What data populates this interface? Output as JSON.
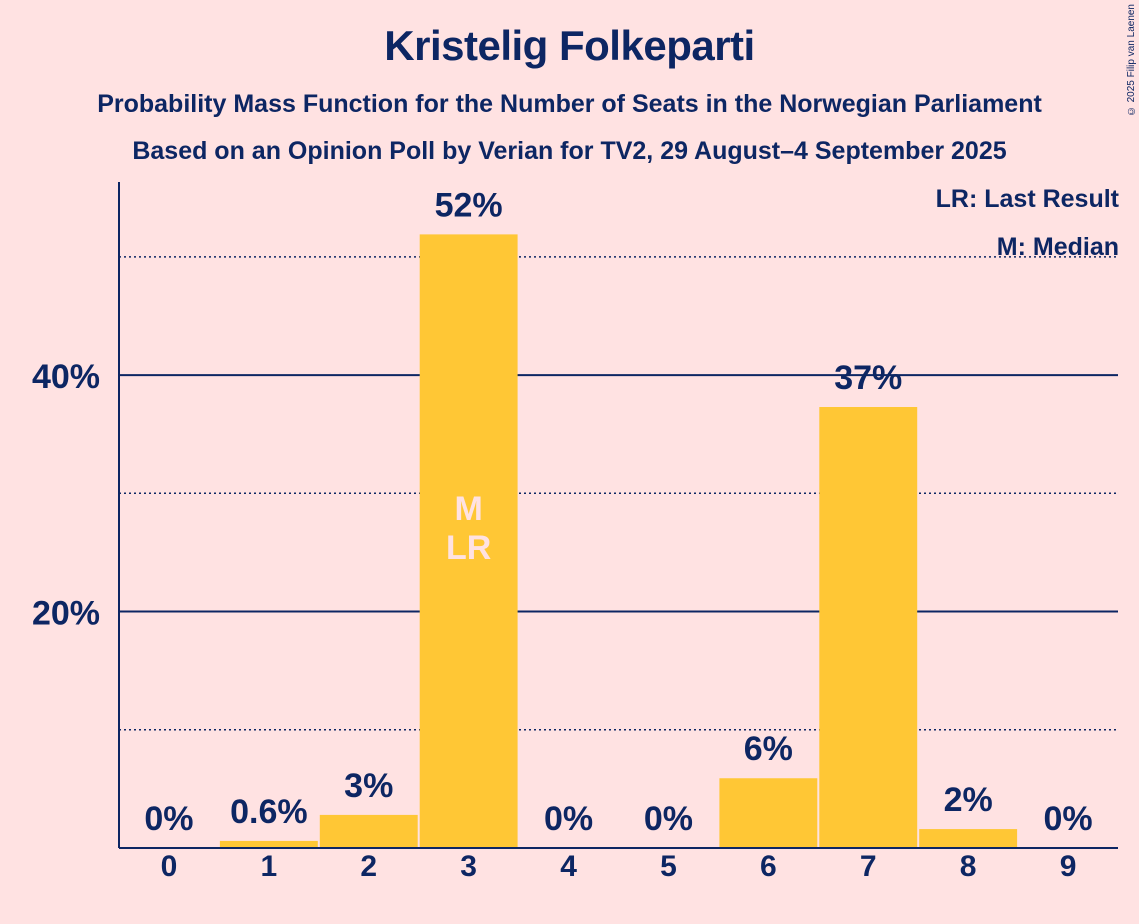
{
  "title": "Kristelig Folkeparti",
  "subtitle1": "Probability Mass Function for the Number of Seats in the Norwegian Parliament",
  "subtitle2": "Based on an Opinion Poll by Verian for TV2, 29 August–4 September 2025",
  "copyright": "© 2025 Filip van Laenen",
  "legend": {
    "last_result": "LR: Last Result",
    "median": "M: Median"
  },
  "colors": {
    "background": "#ffe2e2",
    "bar": "#ffc735",
    "text": "#0d2663",
    "marker_text": "#ffe2e2"
  },
  "chart_data": {
    "type": "bar",
    "categories": [
      "0",
      "1",
      "2",
      "3",
      "4",
      "5",
      "6",
      "7",
      "8",
      "9"
    ],
    "values": [
      0,
      0.6,
      2.8,
      51.9,
      0,
      0,
      5.9,
      37.3,
      1.6,
      0
    ],
    "labels": [
      "0%",
      "0.6%",
      "3%",
      "52%",
      "0%",
      "0%",
      "6%",
      "37%",
      "2%",
      "0%"
    ],
    "ylim": [
      0,
      56.5
    ],
    "yticks": [
      20,
      40
    ],
    "ytick_labels": [
      "20%",
      "40%"
    ],
    "minor_gridlines": [
      10,
      30,
      50
    ],
    "markers": [
      {
        "category": "3",
        "text": [
          "M",
          "LR"
        ]
      }
    ]
  }
}
